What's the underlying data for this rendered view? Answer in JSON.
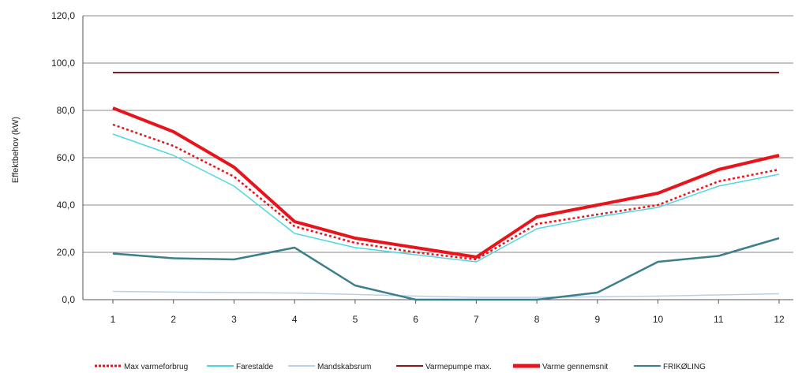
{
  "chart_data": {
    "type": "line",
    "title": "",
    "xlabel": "",
    "ylabel": "Effektbehov (kW)",
    "x": [
      1,
      2,
      3,
      4,
      5,
      6,
      7,
      8,
      9,
      10,
      11,
      12
    ],
    "x_tick_labels": [
      "1",
      "2",
      "3",
      "4",
      "5",
      "6",
      "7",
      "8",
      "9",
      "10",
      "11",
      "12"
    ],
    "ylim": [
      0,
      120
    ],
    "y_tick_labels": [
      "0,0",
      "20,0",
      "40,0",
      "60,0",
      "80,0",
      "100,0",
      "120,0"
    ],
    "grid": "horizontal",
    "legend_position": "bottom",
    "series": [
      {
        "name": "Max varmeforbrug",
        "color": "#e8141b",
        "style": "dotted",
        "values": [
          74,
          65,
          52,
          31,
          24,
          20,
          17,
          32,
          36,
          40,
          50,
          55
        ]
      },
      {
        "name": "Farestalde",
        "color": "#4fd8e0",
        "style": "solid",
        "values": [
          70,
          61,
          48,
          28,
          22,
          19,
          16,
          30,
          35,
          39,
          48,
          53
        ]
      },
      {
        "name": "Mandskabsrum",
        "color": "#b9d0e6",
        "style": "solid",
        "values": [
          3.5,
          3.2,
          3.0,
          2.8,
          2.2,
          1.5,
          1.0,
          1.0,
          1.2,
          1.5,
          2.0,
          2.5
        ]
      },
      {
        "name": "Varmepumpe max.",
        "color": "#8b1a1a",
        "style": "solid",
        "values": [
          96,
          96,
          96,
          96,
          96,
          96,
          96,
          96,
          96,
          96,
          96,
          96
        ]
      },
      {
        "name": "Varme gennemsnit",
        "color": "#e8141b",
        "style": "thick",
        "values": [
          81,
          71,
          56,
          33,
          26,
          22,
          18,
          35,
          40,
          45,
          55,
          61
        ]
      },
      {
        "name": "FRIKØLING",
        "color": "#3b7e8c",
        "style": "solid",
        "values": [
          19.5,
          17.5,
          17,
          22,
          6,
          0,
          0,
          0,
          3,
          16,
          18.5,
          26
        ]
      }
    ]
  }
}
